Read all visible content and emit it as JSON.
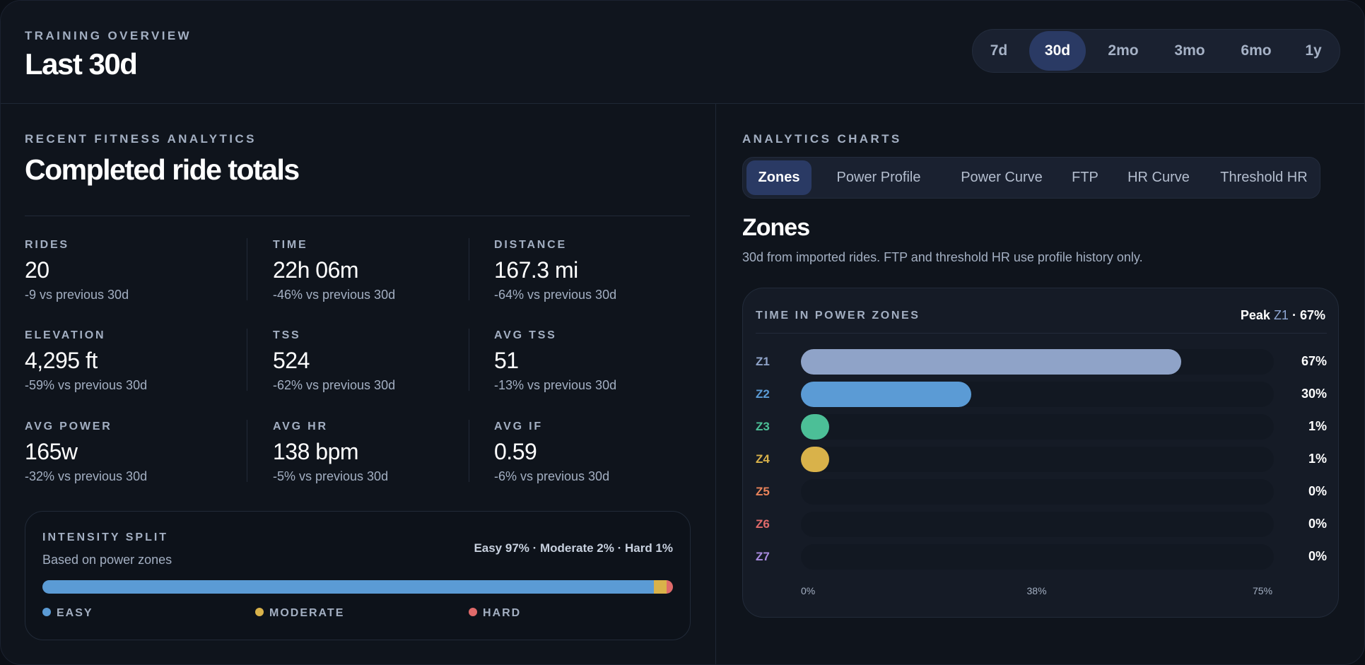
{
  "header": {
    "eyebrow": "TRAINING OVERVIEW",
    "title": "Last 30d",
    "ranges": [
      "7d",
      "30d",
      "2mo",
      "3mo",
      "6mo",
      "1y"
    ],
    "active_range": "30d"
  },
  "left": {
    "eyebrow": "RECENT FITNESS ANALYTICS",
    "title": "Completed ride totals",
    "metrics": [
      {
        "label": "RIDES",
        "value": "20",
        "delta": "-9 vs previous 30d"
      },
      {
        "label": "TIME",
        "value": "22h 06m",
        "delta": "-46% vs previous 30d"
      },
      {
        "label": "DISTANCE",
        "value": "167.3 mi",
        "delta": "-64% vs previous 30d"
      },
      {
        "label": "ELEVATION",
        "value": "4,295 ft",
        "delta": "-59% vs previous 30d"
      },
      {
        "label": "TSS",
        "value": "524",
        "delta": "-62% vs previous 30d"
      },
      {
        "label": "AVG TSS",
        "value": "51",
        "delta": "-13% vs previous 30d"
      },
      {
        "label": "AVG POWER",
        "value": "165w",
        "delta": "-32% vs previous 30d"
      },
      {
        "label": "AVG HR",
        "value": "138 bpm",
        "delta": "-5% vs previous 30d"
      },
      {
        "label": "AVG IF",
        "value": "0.59",
        "delta": "-6% vs previous 30d"
      }
    ],
    "intensity": {
      "eyebrow": "INTENSITY SPLIT",
      "subtitle": "Based on power zones",
      "summary": "Easy 97% · Moderate 2% · Hard 1%",
      "segments": [
        {
          "name": "EASY",
          "percent": 97,
          "color": "#5b9bd5"
        },
        {
          "name": "MODERATE",
          "percent": 2,
          "color": "#d9b24a"
        },
        {
          "name": "HARD",
          "percent": 1,
          "color": "#e06a6a"
        }
      ]
    }
  },
  "right": {
    "eyebrow": "ANALYTICS CHARTS",
    "tabs": [
      "Zones",
      "Power Profile",
      "Power Curve",
      "FTP",
      "HR Curve",
      "Threshold HR"
    ],
    "active_tab": "Zones",
    "title": "Zones",
    "description": "30d from imported rides. FTP and threshold HR use profile history only.",
    "card": {
      "eyebrow": "TIME IN POWER ZONES",
      "peak_prefix": "Peak",
      "peak_zone": "Z1",
      "peak_suffix": "· 67%"
    }
  },
  "chart_data": {
    "type": "bar",
    "orientation": "horizontal",
    "title": "TIME IN POWER ZONES",
    "categories": [
      "Z1",
      "Z2",
      "Z3",
      "Z4",
      "Z5",
      "Z6",
      "Z7"
    ],
    "values": [
      67,
      30,
      1,
      1,
      0,
      0,
      0
    ],
    "value_labels": [
      "67%",
      "30%",
      "1%",
      "1%",
      "0%",
      "0%",
      "0%"
    ],
    "zone_colors": [
      "#8fa3c8",
      "#5b9bd5",
      "#4cbf97",
      "#d9b24a",
      "#e8835a",
      "#e06a6a",
      "#a98be0"
    ],
    "xlim": [
      0,
      75
    ],
    "x_ticks": [
      "0%",
      "38%",
      "75%"
    ],
    "grid": false
  }
}
